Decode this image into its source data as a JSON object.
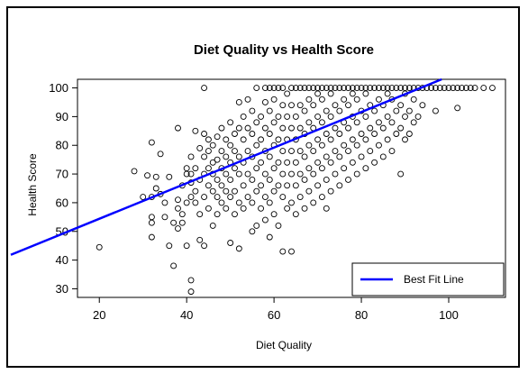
{
  "chart_data": {
    "type": "scatter",
    "title": "Diet Quality vs Health Score",
    "xlabel": "Diet Quality",
    "ylabel": "Health Score",
    "xlim": [
      15,
      113
    ],
    "ylim": [
      27,
      103
    ],
    "xticks": [
      20,
      40,
      60,
      80,
      100
    ],
    "yticks": [
      30,
      40,
      50,
      60,
      70,
      80,
      90,
      100
    ],
    "legend": {
      "position": "bottom-right",
      "entries": [
        {
          "label": "Best Fit Line",
          "color": "#0000ff"
        }
      ]
    },
    "best_fit_line": {
      "intercept": 42.0,
      "slope": 0.62,
      "color": "#0000ff"
    },
    "point_color": "#000000",
    "points": [
      [
        20,
        44.5
      ],
      [
        28,
        71
      ],
      [
        30,
        62
      ],
      [
        31,
        69.5
      ],
      [
        32,
        81
      ],
      [
        32,
        62
      ],
      [
        32,
        55
      ],
      [
        32,
        53
      ],
      [
        32,
        48
      ],
      [
        33,
        69
      ],
      [
        33,
        65
      ],
      [
        34,
        63
      ],
      [
        34,
        77
      ],
      [
        35,
        55
      ],
      [
        35,
        60
      ],
      [
        36,
        45
      ],
      [
        36,
        69
      ],
      [
        37,
        53
      ],
      [
        37,
        38
      ],
      [
        38,
        86
      ],
      [
        38,
        58
      ],
      [
        38,
        51
      ],
      [
        38,
        61
      ],
      [
        39,
        56
      ],
      [
        39,
        53
      ],
      [
        39,
        66
      ],
      [
        40,
        70
      ],
      [
        40,
        72
      ],
      [
        40,
        45
      ],
      [
        40,
        60
      ],
      [
        41,
        29
      ],
      [
        41,
        33
      ],
      [
        41,
        62
      ],
      [
        41,
        67
      ],
      [
        41,
        70
      ],
      [
        41,
        76
      ],
      [
        42,
        60
      ],
      [
        42,
        72
      ],
      [
        42,
        85
      ],
      [
        42,
        64
      ],
      [
        43,
        47
      ],
      [
        43,
        56
      ],
      [
        43,
        68
      ],
      [
        43,
        79
      ],
      [
        44,
        100
      ],
      [
        44,
        45
      ],
      [
        44,
        62
      ],
      [
        44,
        70
      ],
      [
        44,
        76
      ],
      [
        44,
        84
      ],
      [
        45,
        58
      ],
      [
        45,
        66
      ],
      [
        45,
        72
      ],
      [
        45,
        78
      ],
      [
        45,
        82
      ],
      [
        46,
        52
      ],
      [
        46,
        64
      ],
      [
        46,
        70
      ],
      [
        46,
        74
      ],
      [
        46,
        80
      ],
      [
        47,
        56
      ],
      [
        47,
        62
      ],
      [
        47,
        68
      ],
      [
        47,
        75
      ],
      [
        47,
        83
      ],
      [
        48,
        60
      ],
      [
        48,
        66
      ],
      [
        48,
        72
      ],
      [
        48,
        78
      ],
      [
        48,
        86
      ],
      [
        49,
        58
      ],
      [
        49,
        64
      ],
      [
        49,
        70
      ],
      [
        49,
        76
      ],
      [
        49,
        82
      ],
      [
        50,
        46
      ],
      [
        50,
        62
      ],
      [
        50,
        68
      ],
      [
        50,
        74
      ],
      [
        50,
        80
      ],
      [
        50,
        88
      ],
      [
        51,
        56
      ],
      [
        51,
        64
      ],
      [
        51,
        72
      ],
      [
        51,
        78
      ],
      [
        51,
        84
      ],
      [
        52,
        44
      ],
      [
        52,
        60
      ],
      [
        52,
        70
      ],
      [
        52,
        76
      ],
      [
        52,
        86
      ],
      [
        52,
        95
      ],
      [
        53,
        58
      ],
      [
        53,
        66
      ],
      [
        53,
        74
      ],
      [
        53,
        82
      ],
      [
        53,
        90
      ],
      [
        54,
        62
      ],
      [
        54,
        70
      ],
      [
        54,
        78
      ],
      [
        54,
        86
      ],
      [
        54,
        96
      ],
      [
        55,
        50
      ],
      [
        55,
        60
      ],
      [
        55,
        68
      ],
      [
        55,
        76
      ],
      [
        55,
        84
      ],
      [
        55,
        92
      ],
      [
        56,
        52
      ],
      [
        56,
        64
      ],
      [
        56,
        72
      ],
      [
        56,
        80
      ],
      [
        56,
        88
      ],
      [
        56,
        100
      ],
      [
        57,
        58
      ],
      [
        57,
        66
      ],
      [
        57,
        74
      ],
      [
        57,
        82
      ],
      [
        57,
        90
      ],
      [
        58,
        54
      ],
      [
        58,
        62
      ],
      [
        58,
        70
      ],
      [
        58,
        78
      ],
      [
        58,
        86
      ],
      [
        58,
        95
      ],
      [
        58,
        100
      ],
      [
        59,
        48
      ],
      [
        59,
        60
      ],
      [
        59,
        68
      ],
      [
        59,
        76
      ],
      [
        59,
        84
      ],
      [
        59,
        92
      ],
      [
        59,
        100
      ],
      [
        60,
        56
      ],
      [
        60,
        64
      ],
      [
        60,
        72
      ],
      [
        60,
        80
      ],
      [
        60,
        88
      ],
      [
        60,
        96
      ],
      [
        60,
        100
      ],
      [
        61,
        52
      ],
      [
        61,
        66
      ],
      [
        61,
        74
      ],
      [
        61,
        82
      ],
      [
        61,
        90
      ],
      [
        61,
        100
      ],
      [
        62,
        43
      ],
      [
        62,
        62
      ],
      [
        62,
        70
      ],
      [
        62,
        78
      ],
      [
        62,
        86
      ],
      [
        62,
        94
      ],
      [
        62,
        100
      ],
      [
        63,
        58
      ],
      [
        63,
        66
      ],
      [
        63,
        74
      ],
      [
        63,
        82
      ],
      [
        63,
        90
      ],
      [
        63,
        98
      ],
      [
        64,
        43
      ],
      [
        64,
        60
      ],
      [
        64,
        70
      ],
      [
        64,
        78
      ],
      [
        64,
        86
      ],
      [
        64,
        94
      ],
      [
        64,
        100
      ],
      [
        65,
        56
      ],
      [
        65,
        66
      ],
      [
        65,
        74
      ],
      [
        65,
        82
      ],
      [
        65,
        90
      ],
      [
        65,
        100
      ],
      [
        66,
        62
      ],
      [
        66,
        70
      ],
      [
        66,
        78
      ],
      [
        66,
        86
      ],
      [
        66,
        94
      ],
      [
        66,
        100
      ],
      [
        67,
        58
      ],
      [
        67,
        68
      ],
      [
        67,
        76
      ],
      [
        67,
        84
      ],
      [
        67,
        92
      ],
      [
        67,
        100
      ],
      [
        68,
        64
      ],
      [
        68,
        72
      ],
      [
        68,
        80
      ],
      [
        68,
        88
      ],
      [
        68,
        96
      ],
      [
        68,
        100
      ],
      [
        69,
        60
      ],
      [
        69,
        70
      ],
      [
        69,
        78
      ],
      [
        69,
        86
      ],
      [
        69,
        94
      ],
      [
        69,
        100
      ],
      [
        70,
        66
      ],
      [
        70,
        74
      ],
      [
        70,
        82
      ],
      [
        70,
        90
      ],
      [
        70,
        98
      ],
      [
        70,
        100
      ],
      [
        71,
        62
      ],
      [
        71,
        72
      ],
      [
        71,
        80
      ],
      [
        71,
        88
      ],
      [
        71,
        96
      ],
      [
        71,
        100
      ],
      [
        72,
        58
      ],
      [
        72,
        68
      ],
      [
        72,
        76
      ],
      [
        72,
        84
      ],
      [
        72,
        92
      ],
      [
        72,
        100
      ],
      [
        73,
        64
      ],
      [
        73,
        74
      ],
      [
        73,
        82
      ],
      [
        73,
        90
      ],
      [
        73,
        98
      ],
      [
        73,
        100
      ],
      [
        74,
        70
      ],
      [
        74,
        78
      ],
      [
        74,
        86
      ],
      [
        74,
        94
      ],
      [
        74,
        100
      ],
      [
        75,
        66
      ],
      [
        75,
        76
      ],
      [
        75,
        84
      ],
      [
        75,
        92
      ],
      [
        75,
        100
      ],
      [
        76,
        72
      ],
      [
        76,
        80
      ],
      [
        76,
        88
      ],
      [
        76,
        96
      ],
      [
        76,
        100
      ],
      [
        77,
        68
      ],
      [
        77,
        78
      ],
      [
        77,
        86
      ],
      [
        77,
        94
      ],
      [
        77,
        100
      ],
      [
        78,
        74
      ],
      [
        78,
        82
      ],
      [
        78,
        90
      ],
      [
        78,
        98
      ],
      [
        78,
        100
      ],
      [
        79,
        70
      ],
      [
        79,
        80
      ],
      [
        79,
        88
      ],
      [
        79,
        96
      ],
      [
        79,
        100
      ],
      [
        80,
        76
      ],
      [
        80,
        84
      ],
      [
        80,
        92
      ],
      [
        80,
        100
      ],
      [
        81,
        72
      ],
      [
        81,
        82
      ],
      [
        81,
        90
      ],
      [
        81,
        98
      ],
      [
        81,
        100
      ],
      [
        82,
        78
      ],
      [
        82,
        86
      ],
      [
        82,
        94
      ],
      [
        82,
        100
      ],
      [
        83,
        74
      ],
      [
        83,
        84
      ],
      [
        83,
        92
      ],
      [
        83,
        100
      ],
      [
        84,
        80
      ],
      [
        84,
        88
      ],
      [
        84,
        96
      ],
      [
        84,
        100
      ],
      [
        85,
        76
      ],
      [
        85,
        86
      ],
      [
        85,
        94
      ],
      [
        85,
        100
      ],
      [
        86,
        82
      ],
      [
        86,
        90
      ],
      [
        86,
        98
      ],
      [
        86,
        100
      ],
      [
        87,
        78
      ],
      [
        87,
        88
      ],
      [
        87,
        96
      ],
      [
        87,
        100
      ],
      [
        88,
        84
      ],
      [
        88,
        92
      ],
      [
        88,
        100
      ],
      [
        89,
        70
      ],
      [
        89,
        86
      ],
      [
        89,
        94
      ],
      [
        89,
        100
      ],
      [
        90,
        82
      ],
      [
        90,
        90
      ],
      [
        90,
        98
      ],
      [
        90,
        100
      ],
      [
        91,
        84
      ],
      [
        91,
        92
      ],
      [
        91,
        100
      ],
      [
        92,
        88
      ],
      [
        92,
        96
      ],
      [
        92,
        100
      ],
      [
        93,
        90
      ],
      [
        93,
        100
      ],
      [
        94,
        94
      ],
      [
        94,
        100
      ],
      [
        95,
        100
      ],
      [
        96,
        100
      ],
      [
        97,
        92
      ],
      [
        97,
        100
      ],
      [
        98,
        100
      ],
      [
        99,
        100
      ],
      [
        100,
        100
      ],
      [
        101,
        100
      ],
      [
        102,
        93
      ],
      [
        102,
        100
      ],
      [
        103,
        100
      ],
      [
        104,
        100
      ],
      [
        105,
        100
      ],
      [
        106,
        100
      ],
      [
        108,
        100
      ],
      [
        110,
        100
      ]
    ]
  }
}
